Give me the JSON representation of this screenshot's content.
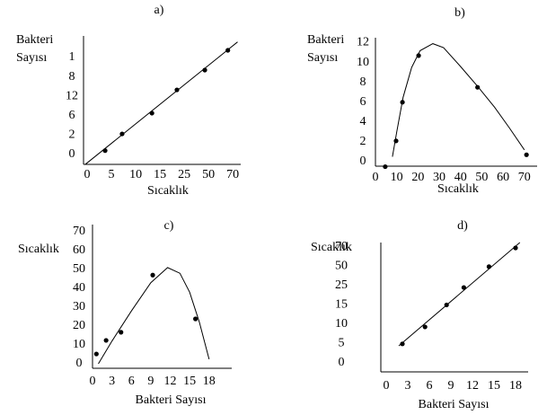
{
  "chart_data": [
    {
      "type": "scatter-line",
      "title": "a)",
      "y_label": [
        "Bakteri",
        "Sayısı"
      ],
      "x_label": "Sıcaklık",
      "color": "#000000",
      "xlim": [
        -0.15,
        6.33
      ],
      "ylim": [
        -0.51,
        6.11
      ],
      "xticks": [
        {
          "value": 0,
          "label": "0"
        },
        {
          "value": 1,
          "label": "5"
        },
        {
          "value": 2,
          "label": "10"
        },
        {
          "value": 3,
          "label": "15"
        },
        {
          "value": 4,
          "label": "25"
        },
        {
          "value": 5,
          "label": "50"
        },
        {
          "value": 6,
          "label": "70"
        }
      ],
      "yticks": [
        {
          "value": 0,
          "label": "0"
        },
        {
          "value": 1,
          "label": "2"
        },
        {
          "value": 2,
          "label": "6"
        },
        {
          "value": 3,
          "label": "12"
        },
        {
          "value": 4,
          "label": "8"
        },
        {
          "value": 5,
          "label": "1"
        }
      ],
      "points": {
        "x": [
          0.74,
          1.44,
          2.67,
          3.7,
          4.85,
          5.8
        ],
        "y": [
          0.2,
          1.06,
          2.13,
          3.33,
          4.35,
          5.37
        ]
      },
      "curve": {
        "x": [
          -0.07,
          6.2
        ],
        "y": [
          -0.5,
          5.8
        ]
      }
    },
    {
      "type": "scatter-line",
      "title": "b)",
      "y_label": [
        "Bakteri",
        "Sayısı"
      ],
      "x_label": "Sıcaklık",
      "color": "#000000",
      "xlim": [
        0,
        76
      ],
      "ylim": [
        -0.45,
        12.5
      ],
      "xticks": [
        0,
        10,
        20,
        30,
        40,
        50,
        60,
        70
      ],
      "yticks": [
        0,
        2,
        4,
        6,
        8,
        10,
        12
      ],
      "points": {
        "x": [
          4.6,
          9.7,
          12.7,
          20.3,
          48,
          71
        ],
        "y": [
          -0.5,
          2.1,
          6,
          10.7,
          7.5,
          0.7
        ]
      },
      "curve": {
        "x": [
          8,
          10,
          13,
          17,
          21,
          27,
          32,
          40,
          48,
          56,
          63,
          70
        ],
        "y": [
          0.5,
          3,
          6.5,
          9.5,
          11.2,
          11.9,
          11.5,
          9.6,
          7.6,
          5.5,
          3.4,
          1.2
        ]
      }
    },
    {
      "type": "scatter-line",
      "title": "c)",
      "y_label": [
        "Sıcaklık"
      ],
      "x_label": "Bakteri Sayısı",
      "color": "#000000",
      "xlim": [
        0,
        21.5
      ],
      "ylim": [
        -2.4,
        73.8
      ],
      "xticks": [
        0,
        3,
        6,
        9,
        12,
        15,
        18
      ],
      "yticks": [
        0,
        10,
        20,
        30,
        40,
        50,
        60,
        70
      ],
      "points": {
        "x": [
          0.6,
          2.1,
          4.4,
          9.3,
          15.9
        ],
        "y": [
          5.2,
          12.4,
          16.7,
          47,
          23.8
        ]
      },
      "curve": {
        "x": [
          0.9,
          3,
          6,
          9,
          11.6,
          13.5,
          15,
          16.5,
          18
        ],
        "y": [
          0,
          12,
          28,
          43,
          51,
          48,
          38,
          22,
          2.4
        ]
      }
    },
    {
      "type": "scatter-line",
      "title": "d)",
      "y_label": [
        "Sıcaklık"
      ],
      "x_label": "Bakteri Sayısı",
      "color": "#000000",
      "xlim": [
        -0.75,
        19.75
      ],
      "ylim": [
        -0.47,
        6.23
      ],
      "xticks": [
        0,
        3,
        6,
        9,
        12,
        15,
        18
      ],
      "yticks": [
        {
          "value": 0,
          "label": "0"
        },
        {
          "value": 1,
          "label": "5"
        },
        {
          "value": 2,
          "label": "10"
        },
        {
          "value": 3,
          "label": "15"
        },
        {
          "value": 4,
          "label": "25"
        },
        {
          "value": 5,
          "label": "50"
        },
        {
          "value": 6,
          "label": "70"
        }
      ],
      "points": {
        "x": [
          2.25,
          5.4,
          8.4,
          10.8,
          14.3,
          18
        ],
        "y": [
          0.98,
          1.86,
          3.0,
          3.9,
          4.98,
          5.95
        ]
      },
      "curve": {
        "x": [
          1.75,
          18.6
        ],
        "y": [
          0.88,
          6.23
        ]
      }
    }
  ]
}
